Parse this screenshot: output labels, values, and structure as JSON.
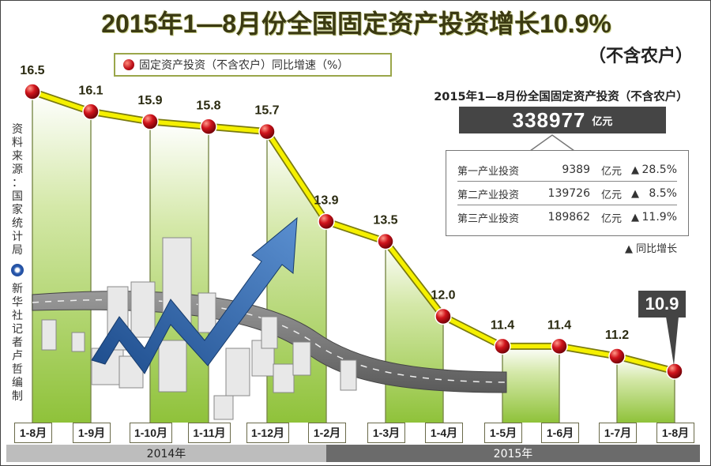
{
  "title": "2015年1—8月份全国固定资产投资增长10.9%",
  "subtitle": "（不含农户）",
  "legend": {
    "label": "固定资产投资（不含农户）同比增速（%）",
    "marker_color": "#c0121a"
  },
  "source": {
    "lines": [
      "资",
      "料",
      "来",
      "源",
      "：",
      "国",
      "家",
      "统",
      "计",
      "局"
    ],
    "credit": [
      "新",
      "华",
      "社",
      "记",
      "者",
      "卢",
      "哲",
      "编",
      "制"
    ]
  },
  "summary": {
    "title": "2015年1—8月份全国固定资产投资（不含农户）",
    "total_value": "338977",
    "total_unit": "亿元",
    "rows": [
      {
        "name": "第一产业投资",
        "value": "9389",
        "unit": "亿元",
        "arrow": "▲",
        "pct": "28.5%"
      },
      {
        "name": "第二产业投资",
        "value": "139726",
        "unit": "亿元",
        "arrow": "▲",
        "pct": "8.5%"
      },
      {
        "name": "第三产业投资",
        "value": "189862",
        "unit": "亿元",
        "arrow": "▲",
        "pct": "11.9%"
      }
    ],
    "note": "▲  同比增长"
  },
  "callout": "10.9",
  "years": {
    "y2014": "2014年",
    "y2015": "2015年"
  },
  "colors": {
    "line": "#f5f000",
    "line_edge": "#7a7a10",
    "band": "#9ccb4a",
    "dot": "#c0121a",
    "title": "#3b3a12"
  },
  "chart_data": {
    "type": "line",
    "title": "2015年1—8月份全国固定资产投资增长10.9%（不含农户）",
    "xlabel": "",
    "ylabel": "固定资产投资（不含农户）同比增速（%）",
    "categories": [
      "1-8月",
      "1-9月",
      "1-10月",
      "1-11月",
      "1-12月",
      "1-2月",
      "1-3月",
      "1-4月",
      "1-5月",
      "1-6月",
      "1-7月",
      "1-8月"
    ],
    "period": [
      "2014年",
      "2014年",
      "2014年",
      "2014年",
      "2014年",
      "2015年",
      "2015年",
      "2015年",
      "2015年",
      "2015年",
      "2015年",
      "2015年"
    ],
    "series": [
      {
        "name": "固定资产投资（不含农户）同比增速（%）",
        "values": [
          16.5,
          16.1,
          15.9,
          15.8,
          15.7,
          13.9,
          13.5,
          12.0,
          11.4,
          11.4,
          11.2,
          10.9
        ]
      }
    ],
    "grid": false,
    "legend_position": "top"
  }
}
